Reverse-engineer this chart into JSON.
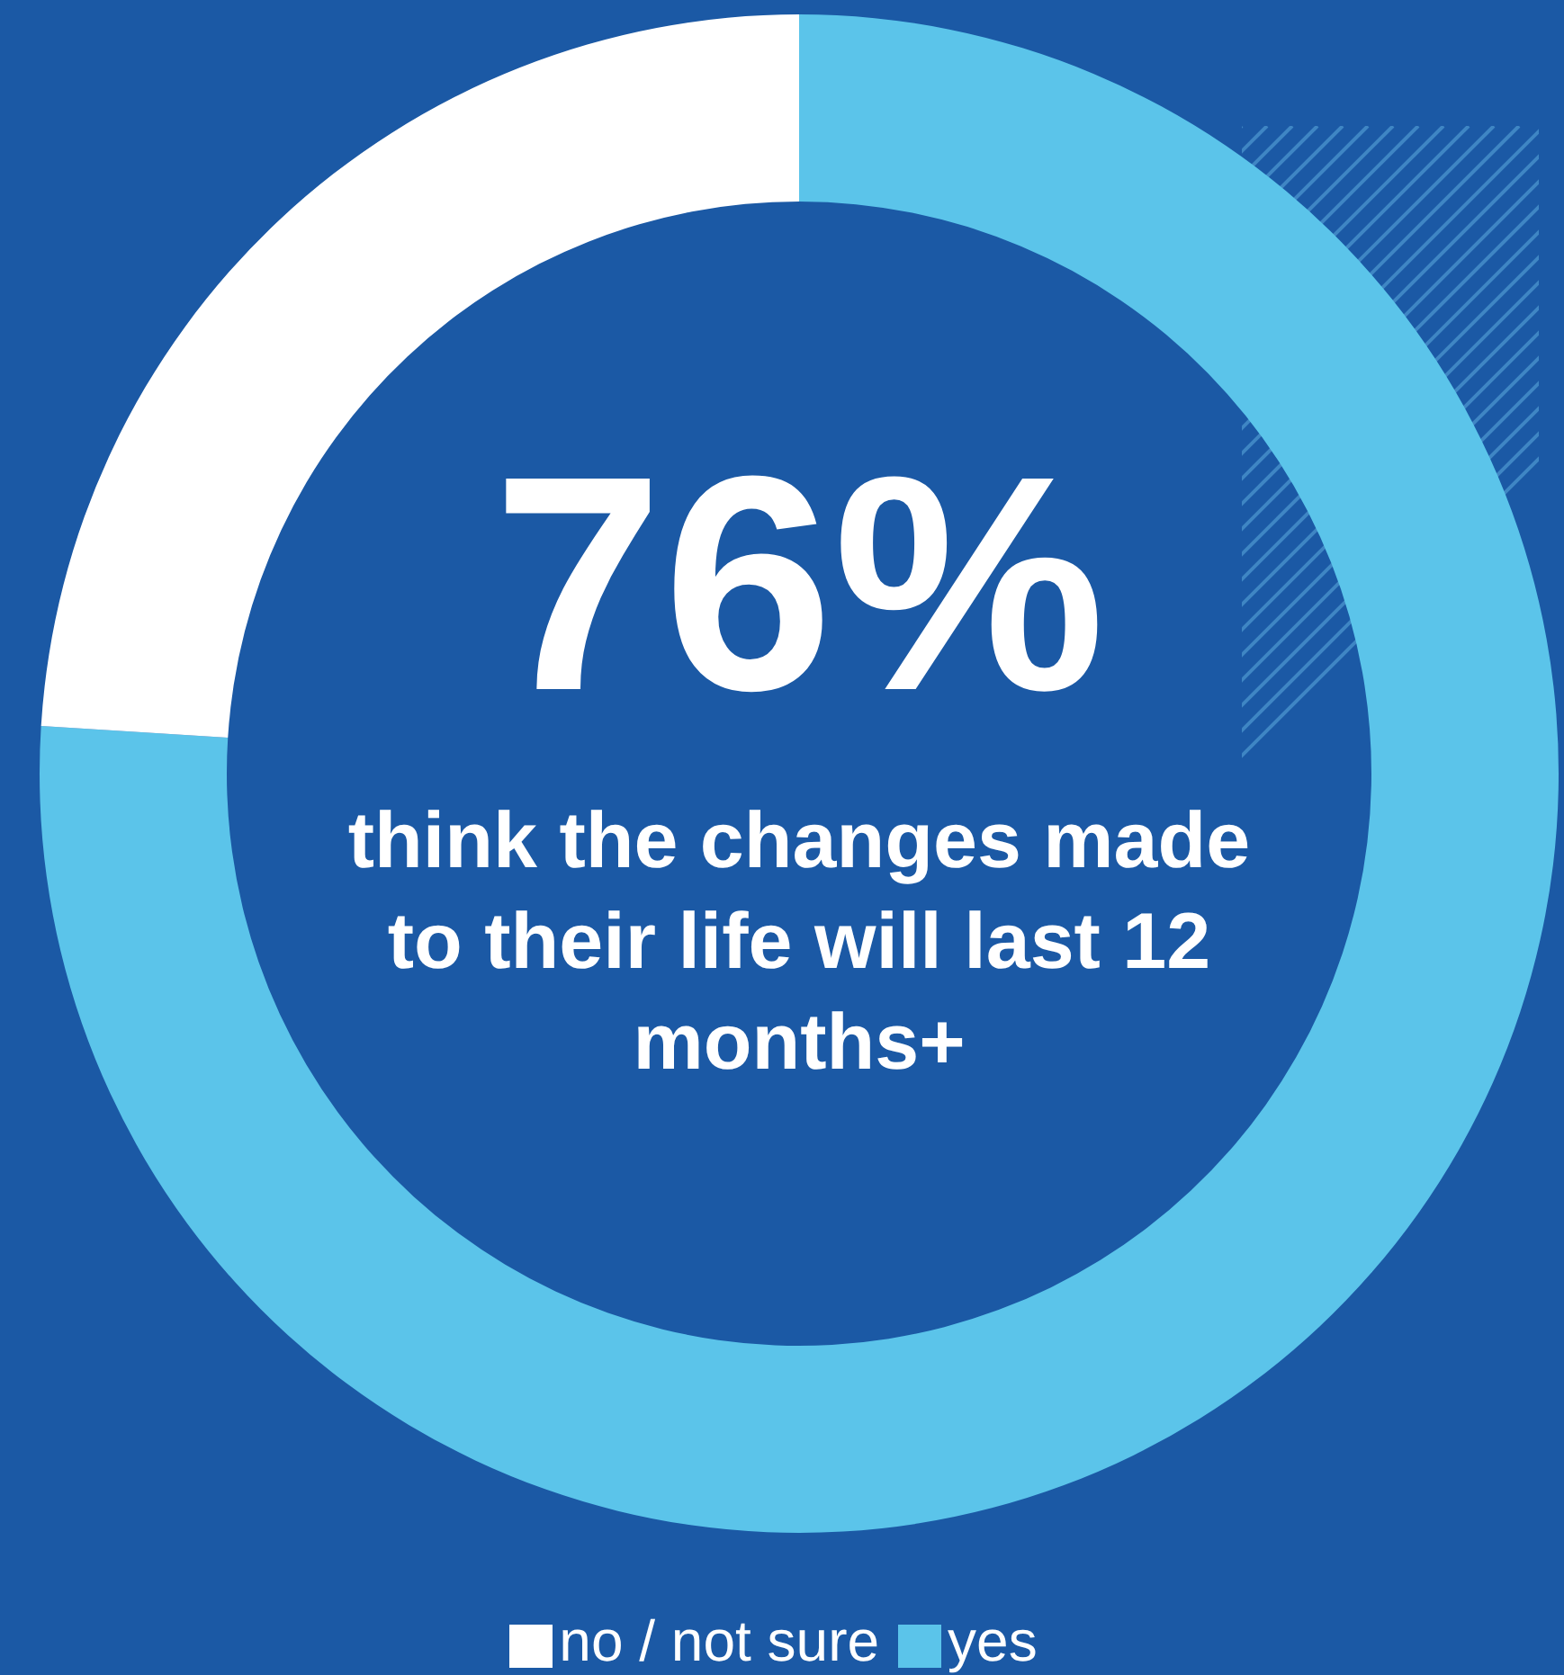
{
  "chart_data": {
    "type": "donut",
    "categories": [
      "yes",
      "no / not sure"
    ],
    "values": [
      76,
      24
    ],
    "colors": [
      "#5bc4ea",
      "#ffffff"
    ],
    "value_labels": [
      "76%",
      null
    ],
    "annotations": [
      "think the changes made to their life will last 12 months+"
    ],
    "legend": "bottom"
  }
}
